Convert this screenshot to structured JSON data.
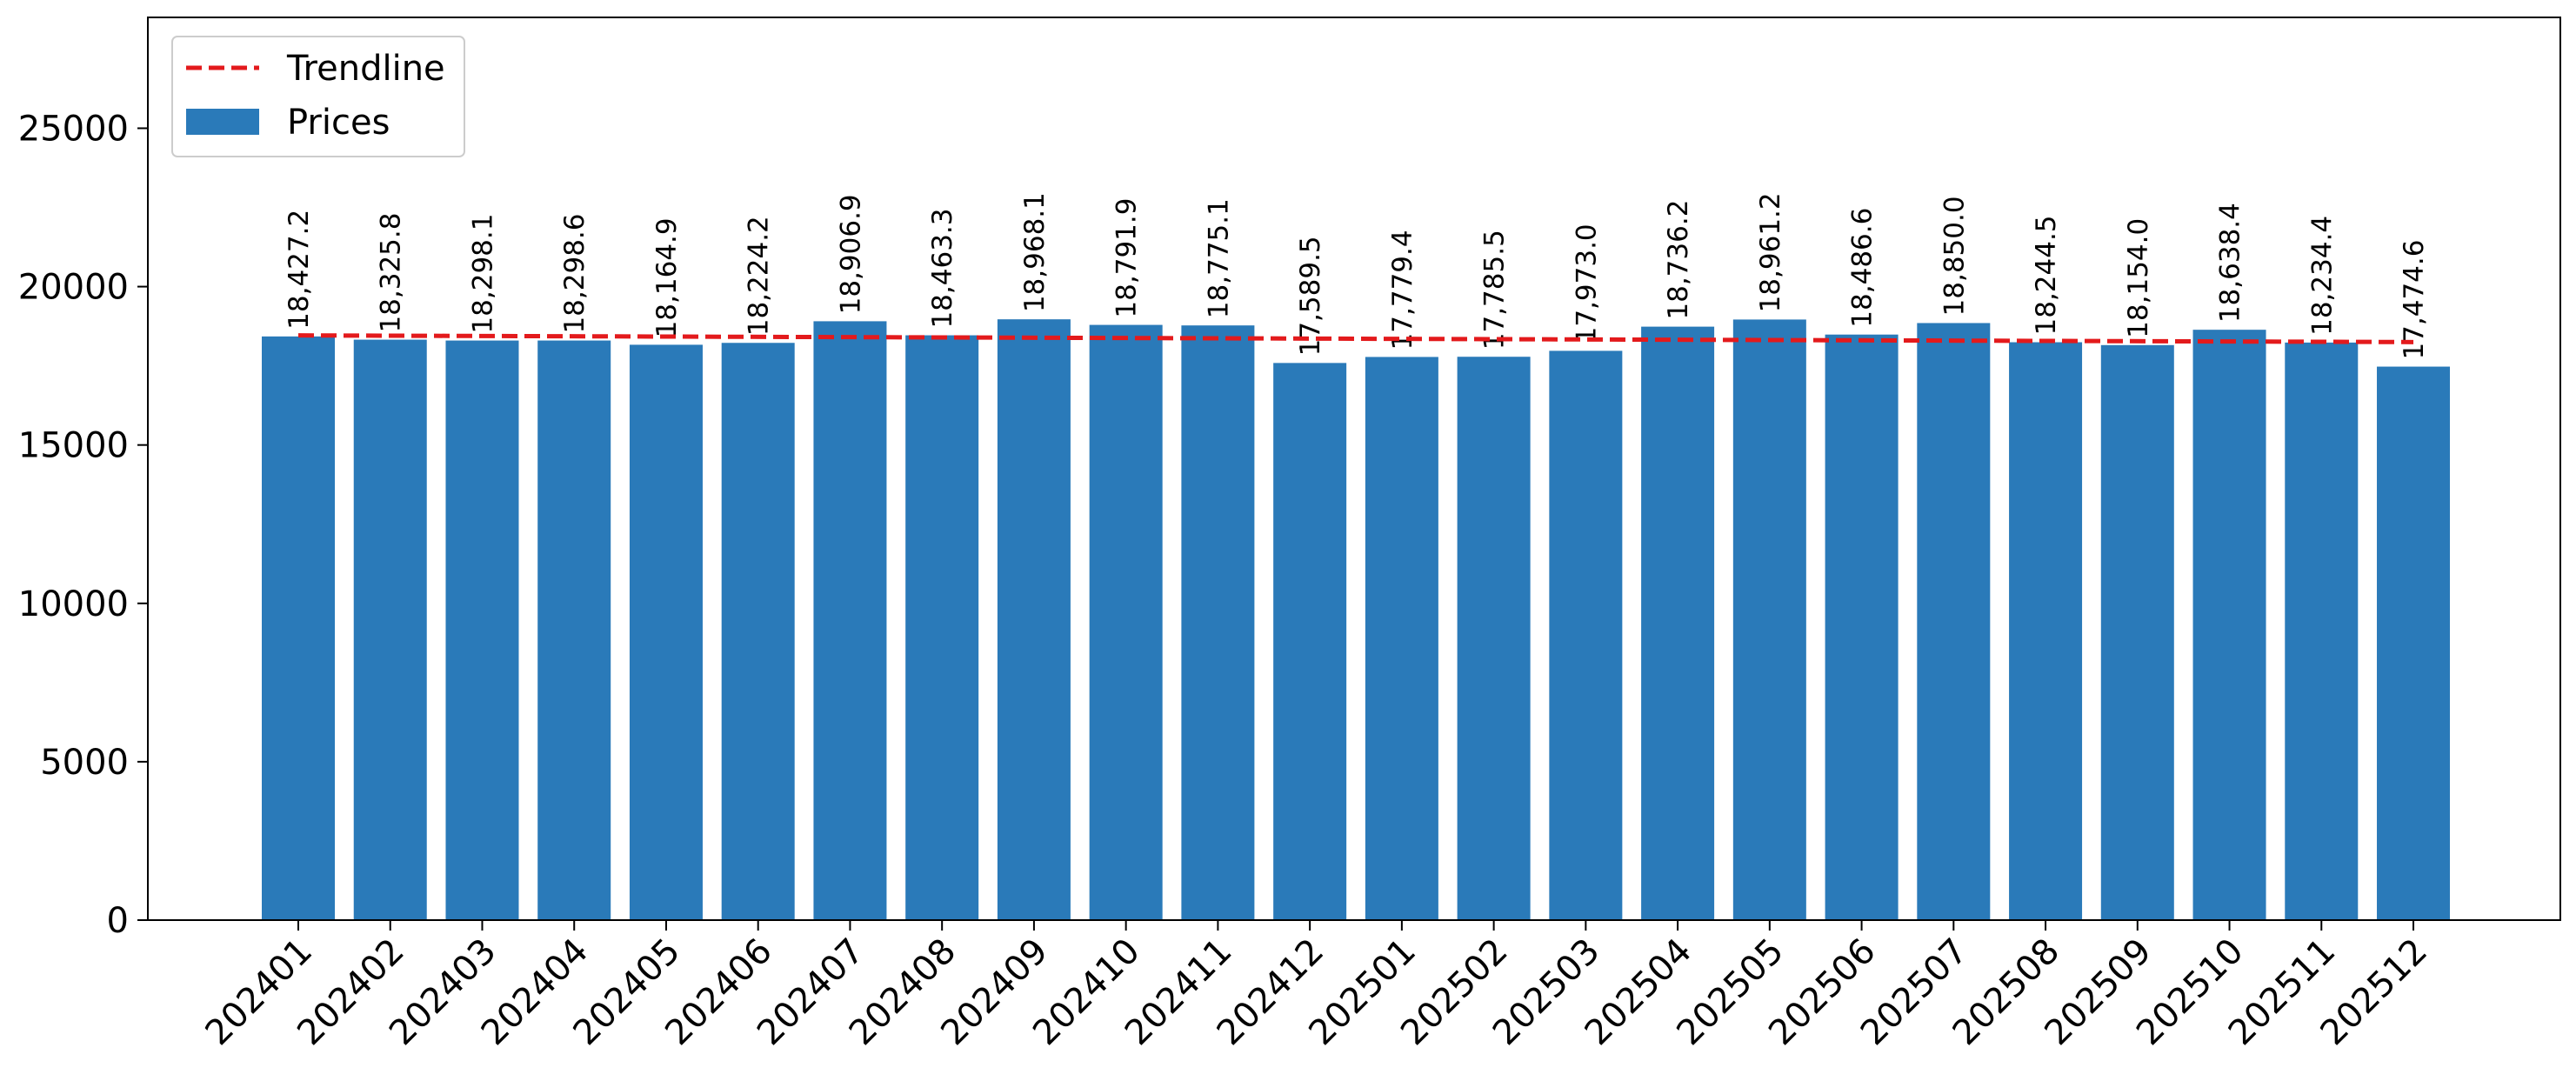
{
  "chart_data": {
    "type": "bar",
    "title": "",
    "xlabel": "",
    "ylabel": "",
    "categories": [
      "202401",
      "202402",
      "202403",
      "202404",
      "202405",
      "202406",
      "202407",
      "202408",
      "202409",
      "202410",
      "202411",
      "202412",
      "202501",
      "202502",
      "202503",
      "202504",
      "202505",
      "202506",
      "202507",
      "202508",
      "202509",
      "202510",
      "202511",
      "202512"
    ],
    "series": [
      {
        "name": "Prices",
        "type": "bar",
        "color": "#2a7ab9",
        "values": [
          18427.2,
          18325.8,
          18298.1,
          18298.6,
          18164.9,
          18224.2,
          18906.9,
          18463.3,
          18968.1,
          18791.9,
          18775.1,
          17589.5,
          17779.4,
          17785.5,
          17973.0,
          18736.2,
          18961.2,
          18486.6,
          18850.0,
          18244.5,
          18154.0,
          18638.4,
          18234.4,
          17474.6
        ]
      },
      {
        "name": "Trendline",
        "type": "line",
        "style": "dashed",
        "color": "#e31a1c",
        "start": 18460,
        "end": 18250
      }
    ],
    "data_labels": [
      "18,427.2",
      "18,325.8",
      "18,298.1",
      "18,298.6",
      "18,164.9",
      "18,224.2",
      "18,906.9",
      "18,463.3",
      "18,968.1",
      "18,791.9",
      "18,775.1",
      "17,589.5",
      "17,779.4",
      "17,785.5",
      "17,973.0",
      "18,736.2",
      "18,961.2",
      "18,486.6",
      "18,850.0",
      "18,244.5",
      "18,154.0",
      "18,638.4",
      "18,234.4",
      "17,474.6"
    ],
    "yticks": [
      "0",
      "5000",
      "10000",
      "15000",
      "20000",
      "25000"
    ],
    "ytick_values": [
      0,
      5000,
      10000,
      15000,
      20000,
      25000
    ],
    "ylim": [
      0,
      28500
    ],
    "grid": false,
    "legend": {
      "placement": "top-left",
      "entries": [
        "Trendline",
        "Prices"
      ]
    }
  }
}
